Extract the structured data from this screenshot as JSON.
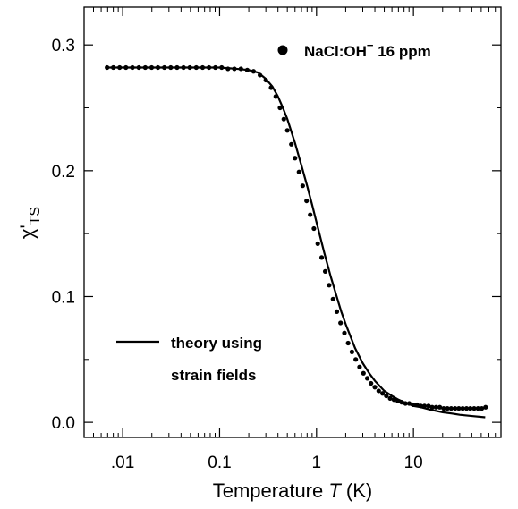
{
  "chart_data": {
    "type": "scatter",
    "x_scale": "log",
    "xlim": [
      0.004,
      80
    ],
    "ylim": [
      -0.012,
      0.33
    ],
    "grid": false,
    "legend_position": "top-right",
    "xlabel_pre": "Temperature ",
    "xlabel_italic": "T",
    "xlabel_post": " (K)",
    "ylabel_main": "χ'",
    "ylabel_sub": "TS",
    "xticks": [
      {
        "value": 0.01,
        "label": ".01"
      },
      {
        "value": 0.1,
        "label": "0.1"
      },
      {
        "value": 1,
        "label": "1"
      },
      {
        "value": 10,
        "label": "10"
      }
    ],
    "yticks": [
      {
        "value": 0.0,
        "label": "0.0"
      },
      {
        "value": 0.1,
        "label": "0.1"
      },
      {
        "value": 0.2,
        "label": "0.2"
      },
      {
        "value": 0.3,
        "label": "0.3"
      }
    ],
    "legend_points": {
      "name": "NaCl:OH",
      "sup": "−",
      "rest": " 16 ppm"
    },
    "legend_line": {
      "line1": "theory using",
      "line2": "strain fields"
    },
    "series": [
      {
        "kind": "points",
        "x": [
          0.0069,
          0.008,
          0.0093,
          0.0108,
          0.0126,
          0.0147,
          0.0171,
          0.0199,
          0.0231,
          0.0269,
          0.0313,
          0.0364,
          0.0424,
          0.0493,
          0.0574,
          0.0668,
          0.0777,
          0.0904,
          0.105,
          0.122,
          0.142,
          0.166,
          0.193,
          0.224,
          0.261,
          0.3,
          0.34,
          0.38,
          0.42,
          0.46,
          0.5,
          0.55,
          0.6,
          0.66,
          0.72,
          0.79,
          0.86,
          0.94,
          1.03,
          1.13,
          1.23,
          1.35,
          1.48,
          1.62,
          1.77,
          1.94,
          2.12,
          2.32,
          2.54,
          2.78,
          3.05,
          3.34,
          3.65,
          4.0,
          4.38,
          4.8,
          5.25,
          5.75,
          6.3,
          6.9,
          7.55,
          8.27,
          9.05,
          9.91,
          10.9,
          11.9,
          13.0,
          14.3,
          15.6,
          17.1,
          18.7,
          20.5,
          22.4,
          24.5,
          26.9,
          29.4,
          32.2,
          35.3,
          38.6,
          42.3,
          46.3,
          50.7,
          55.5
        ],
        "y": [
          0.282,
          0.282,
          0.282,
          0.282,
          0.282,
          0.282,
          0.282,
          0.282,
          0.282,
          0.282,
          0.282,
          0.282,
          0.282,
          0.282,
          0.282,
          0.282,
          0.282,
          0.282,
          0.282,
          0.281,
          0.281,
          0.281,
          0.28,
          0.279,
          0.276,
          0.272,
          0.266,
          0.259,
          0.25,
          0.241,
          0.232,
          0.221,
          0.21,
          0.199,
          0.188,
          0.176,
          0.165,
          0.154,
          0.142,
          0.131,
          0.12,
          0.109,
          0.098,
          0.088,
          0.079,
          0.071,
          0.063,
          0.056,
          0.05,
          0.044,
          0.039,
          0.035,
          0.031,
          0.028,
          0.025,
          0.023,
          0.021,
          0.019,
          0.018,
          0.017,
          0.016,
          0.015,
          0.015,
          0.014,
          0.014,
          0.013,
          0.013,
          0.013,
          0.012,
          0.012,
          0.012,
          0.011,
          0.011,
          0.011,
          0.011,
          0.011,
          0.011,
          0.011,
          0.011,
          0.011,
          0.011,
          0.011,
          0.012
        ]
      },
      {
        "kind": "line",
        "x": [
          0.0069,
          0.01,
          0.02,
          0.05,
          0.1,
          0.15,
          0.2,
          0.25,
          0.3,
          0.35,
          0.4,
          0.45,
          0.5,
          0.6,
          0.7,
          0.8,
          0.9,
          1.0,
          1.2,
          1.4,
          1.6,
          1.8,
          2.0,
          2.5,
          3.0,
          3.5,
          4.0,
          5.0,
          6.0,
          7.0,
          8.0,
          10.0,
          12.0,
          15.0,
          20.0,
          25.0,
          30.0,
          40.0,
          55.0
        ],
        "y": [
          0.282,
          0.282,
          0.282,
          0.282,
          0.282,
          0.281,
          0.28,
          0.278,
          0.273,
          0.267,
          0.259,
          0.25,
          0.241,
          0.222,
          0.204,
          0.188,
          0.173,
          0.159,
          0.135,
          0.116,
          0.101,
          0.088,
          0.078,
          0.059,
          0.047,
          0.039,
          0.033,
          0.025,
          0.021,
          0.018,
          0.016,
          0.013,
          0.012,
          0.01,
          0.008,
          0.007,
          0.006,
          0.005,
          0.004
        ]
      }
    ]
  }
}
